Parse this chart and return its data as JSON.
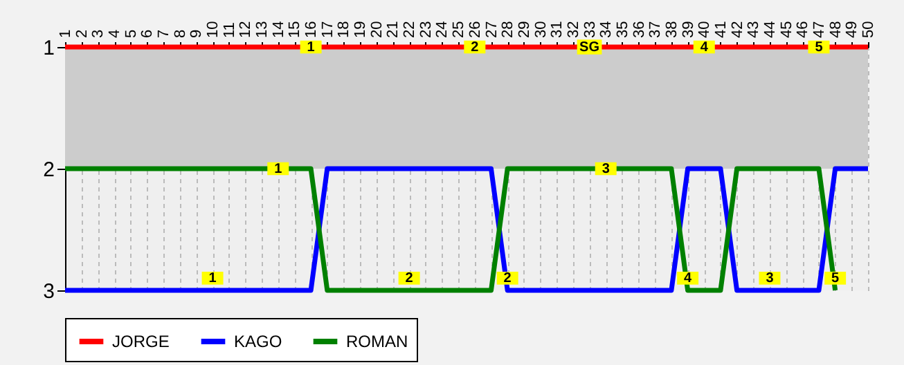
{
  "chart_data": {
    "type": "line",
    "x": [
      1,
      2,
      3,
      4,
      5,
      6,
      7,
      8,
      9,
      10,
      11,
      12,
      13,
      14,
      15,
      16,
      17,
      18,
      19,
      20,
      21,
      22,
      23,
      24,
      25,
      26,
      27,
      28,
      29,
      30,
      31,
      32,
      33,
      34,
      35,
      36,
      37,
      38,
      39,
      40,
      41,
      42,
      43,
      44,
      45,
      46,
      47,
      48,
      49,
      50
    ],
    "series": [
      {
        "name": "JORGE",
        "color": "#ff0000",
        "values": [
          1,
          1,
          1,
          1,
          1,
          1,
          1,
          1,
          1,
          1,
          1,
          1,
          1,
          1,
          1,
          1,
          1,
          1,
          1,
          1,
          1,
          1,
          1,
          1,
          1,
          1,
          1,
          1,
          1,
          1,
          1,
          1,
          1,
          1,
          1,
          1,
          1,
          1,
          1,
          1,
          1,
          1,
          1,
          1,
          1,
          1,
          1,
          1,
          1,
          1
        ]
      },
      {
        "name": "KAGO",
        "color": "#0000ff",
        "values": [
          3,
          3,
          3,
          3,
          3,
          3,
          3,
          3,
          3,
          3,
          3,
          3,
          3,
          3,
          3,
          3,
          2,
          2,
          2,
          2,
          2,
          2,
          2,
          2,
          2,
          2,
          2,
          3,
          3,
          3,
          3,
          3,
          3,
          3,
          3,
          3,
          3,
          3,
          2,
          2,
          2,
          3,
          3,
          3,
          3,
          3,
          3,
          2,
          2,
          2
        ]
      },
      {
        "name": "ROMAN",
        "color": "#008000",
        "values": [
          2,
          2,
          2,
          2,
          2,
          2,
          2,
          2,
          2,
          2,
          2,
          2,
          2,
          2,
          2,
          2,
          3,
          3,
          3,
          3,
          3,
          3,
          3,
          3,
          3,
          3,
          3,
          2,
          2,
          2,
          2,
          2,
          2,
          2,
          2,
          2,
          2,
          2,
          3,
          3,
          3,
          2,
          2,
          2,
          2,
          2,
          2,
          3,
          null,
          null
        ]
      }
    ],
    "xlim": [
      1,
      50
    ],
    "xticks": [
      1,
      2,
      3,
      4,
      5,
      6,
      7,
      8,
      9,
      10,
      11,
      12,
      13,
      14,
      15,
      16,
      17,
      18,
      19,
      20,
      21,
      22,
      23,
      24,
      25,
      26,
      27,
      28,
      29,
      30,
      31,
      32,
      33,
      34,
      35,
      36,
      37,
      38,
      39,
      40,
      41,
      42,
      43,
      44,
      45,
      46,
      47,
      48,
      49,
      50
    ],
    "ylim": [
      3,
      1
    ],
    "yticks": [
      1,
      2,
      3
    ],
    "bands": [
      {
        "axis": "y",
        "from": 1,
        "to": 2,
        "color": "#cccccc"
      }
    ],
    "annotations": [
      {
        "text": "1",
        "x": 16,
        "y": 1
      },
      {
        "text": "2",
        "x": 26,
        "y": 1
      },
      {
        "text": "SG",
        "x": 33,
        "y": 1
      },
      {
        "text": "4",
        "x": 40,
        "y": 1
      },
      {
        "text": "5",
        "x": 47,
        "y": 1
      },
      {
        "text": "1",
        "x": 14,
        "y": 2
      },
      {
        "text": "3",
        "x": 34,
        "y": 2
      },
      {
        "text": "1",
        "x": 10,
        "y": 2.9
      },
      {
        "text": "2",
        "x": 22,
        "y": 2.9
      },
      {
        "text": "2",
        "x": 28,
        "y": 2.9
      },
      {
        "text": "4",
        "x": 39,
        "y": 2.9
      },
      {
        "text": "3",
        "x": 44,
        "y": 2.9
      },
      {
        "text": "5",
        "x": 48,
        "y": 2.9
      }
    ],
    "grid": "x",
    "legend": "bottom",
    "marker": "none",
    "line_style": "solid"
  }
}
